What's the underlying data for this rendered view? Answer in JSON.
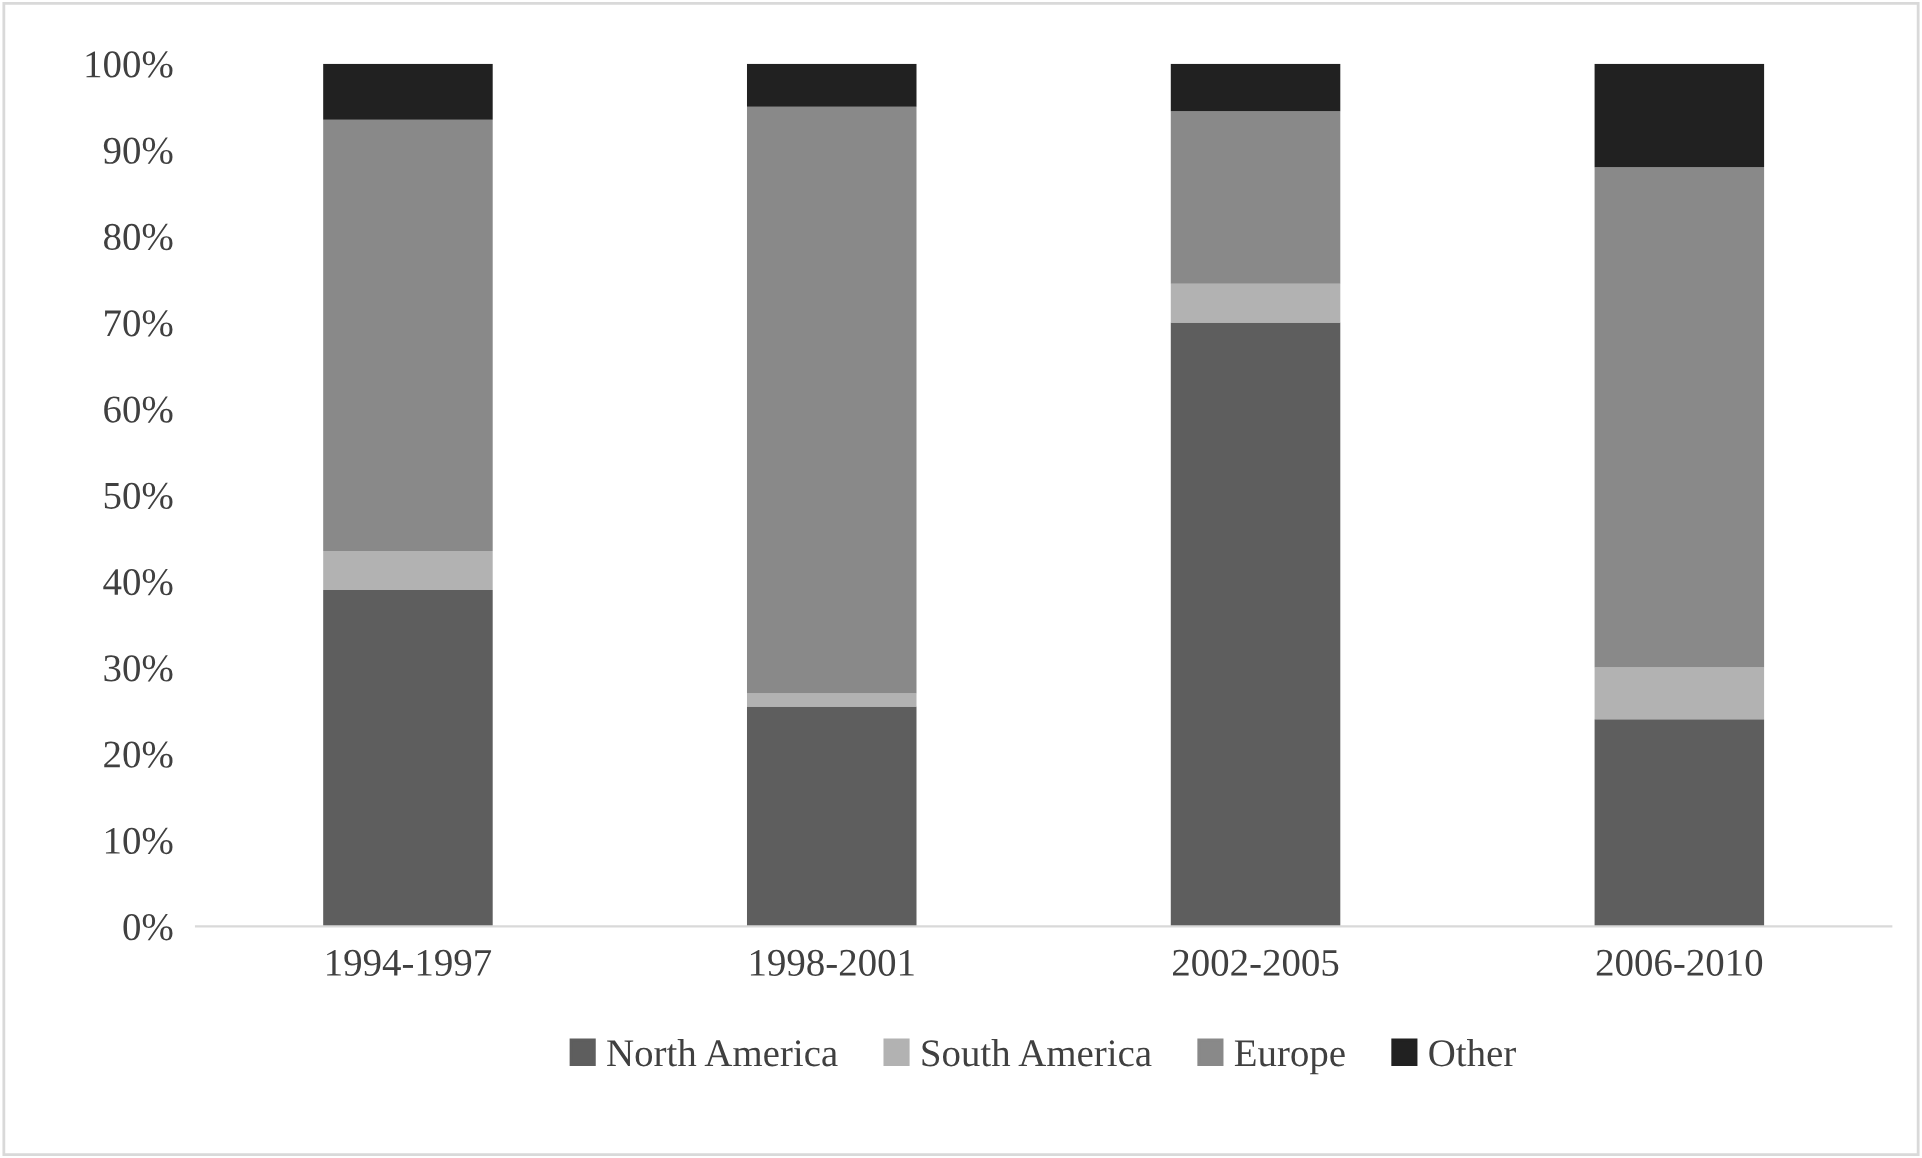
{
  "chart_data": {
    "type": "bar",
    "stacked": true,
    "categories": [
      "1994-1997",
      "1998-2001",
      "2002-2005",
      "2006-2010"
    ],
    "series": [
      {
        "name": "North America",
        "color": "#5e5e5e",
        "values": [
          39,
          25.5,
          70,
          24
        ]
      },
      {
        "name": "South America",
        "color": "#b2b2b2",
        "values": [
          4.5,
          1.5,
          4.5,
          6
        ]
      },
      {
        "name": "Europe",
        "color": "#898989",
        "values": [
          50,
          68,
          20,
          58
        ]
      },
      {
        "name": "Other",
        "color": "#212121",
        "values": [
          6.5,
          5,
          5.5,
          12
        ]
      }
    ],
    "ylim": [
      0,
      100
    ],
    "yticks": [
      {
        "value": 0,
        "label": "0%"
      },
      {
        "value": 10,
        "label": "10%"
      },
      {
        "value": 20,
        "label": "20%"
      },
      {
        "value": 30,
        "label": "30%"
      },
      {
        "value": 40,
        "label": "40%"
      },
      {
        "value": 50,
        "label": "50%"
      },
      {
        "value": 60,
        "label": "60%"
      },
      {
        "value": 70,
        "label": "70%"
      },
      {
        "value": 80,
        "label": "80%"
      },
      {
        "value": 90,
        "label": "90%"
      },
      {
        "value": 100,
        "label": "100%"
      }
    ],
    "grid": false,
    "legend": "bottom"
  }
}
